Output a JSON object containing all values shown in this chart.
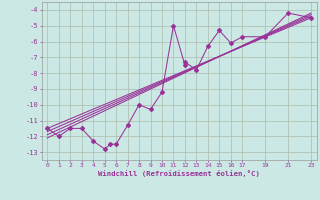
{
  "bg_color": "#cce8e4",
  "line_color": "#993399",
  "grid_color": "#aabbaa",
  "xlabel": "Windchill (Refroidissement éolien,°C)",
  "xlim": [
    -0.5,
    23.5
  ],
  "ylim": [
    -13.5,
    -3.5
  ],
  "xticks": [
    0,
    1,
    2,
    3,
    4,
    5,
    6,
    7,
    8,
    9,
    10,
    11,
    12,
    13,
    14,
    15,
    16,
    17,
    19,
    21,
    23
  ],
  "yticks": [
    -4,
    -5,
    -6,
    -7,
    -8,
    -9,
    -10,
    -11,
    -12,
    -13
  ],
  "line1_x": [
    0,
    1,
    2,
    3,
    4,
    5,
    5.5,
    6,
    7,
    8,
    9,
    10,
    11,
    12,
    12,
    13,
    14,
    15,
    16,
    17,
    19,
    21,
    23
  ],
  "line1_y": [
    -11.5,
    -12.0,
    -11.5,
    -11.5,
    -12.3,
    -12.8,
    -12.5,
    -12.5,
    -11.3,
    -10.0,
    -10.3,
    -9.2,
    -5.0,
    -7.5,
    -7.3,
    -7.8,
    -6.3,
    -5.3,
    -6.1,
    -5.7,
    -5.7,
    -4.2,
    -4.5
  ],
  "straight_lines": [
    {
      "x": [
        0,
        23
      ],
      "y": [
        -11.5,
        -4.5
      ]
    },
    {
      "x": [
        0,
        23
      ],
      "y": [
        -11.7,
        -4.4
      ]
    },
    {
      "x": [
        0,
        23
      ],
      "y": [
        -11.9,
        -4.3
      ]
    },
    {
      "x": [
        0,
        23
      ],
      "y": [
        -12.1,
        -4.2
      ]
    }
  ]
}
